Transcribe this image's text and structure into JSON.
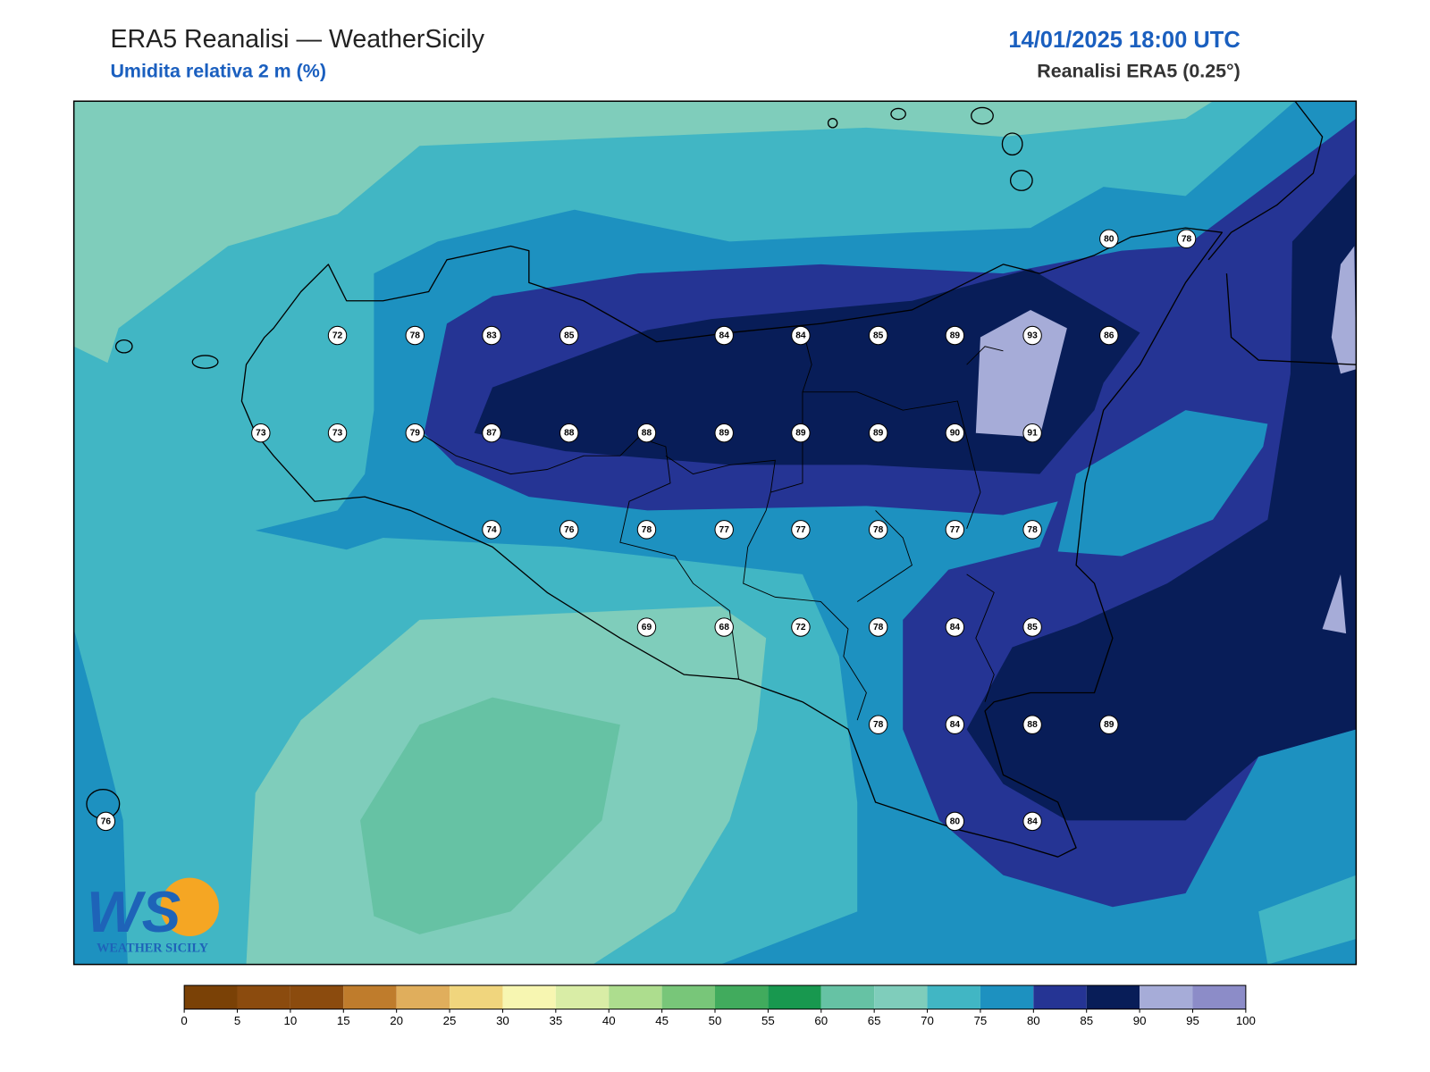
{
  "header": {
    "title": "ERA5 Reanalisi — WeatherSicily",
    "subtitle": "Umidita relativa 2 m (%)",
    "datetime": "14/01/2025 18:00 UTC",
    "source": "Reanalisi ERA5 (0.25°)"
  },
  "stations": {
    "values": [
      80,
      78,
      72,
      78,
      83,
      85,
      84,
      84,
      85,
      89,
      93,
      86,
      73,
      73,
      79,
      87,
      88,
      88,
      89,
      89,
      89,
      90,
      91,
      74,
      76,
      78,
      77,
      77,
      78,
      77,
      78,
      69,
      68,
      72,
      78,
      84,
      85,
      78,
      84,
      88,
      89,
      76,
      80,
      84
    ]
  },
  "colorbar": {
    "ticks": [
      0,
      5,
      10,
      15,
      20,
      25,
      30,
      35,
      40,
      45,
      50,
      55,
      60,
      65,
      70,
      75,
      80,
      85,
      90,
      95,
      100
    ],
    "colors": [
      "#7a4106",
      "#8b4b0e",
      "#8b4b0e",
      "#bf7c2c",
      "#e0ae5c",
      "#f0d57d",
      "#f7f6b1",
      "#d9eda6",
      "#addd8e",
      "#78c679",
      "#41ab5d",
      "#18984f",
      "#66c2a4",
      "#7fcdbb",
      "#41b6c4",
      "#1d91c0",
      "#253494",
      "#081d58",
      "#a6acd8",
      "#8c8cc8"
    ]
  },
  "logo": {
    "mark": "WS",
    "text": "WEATHER SICILY"
  }
}
